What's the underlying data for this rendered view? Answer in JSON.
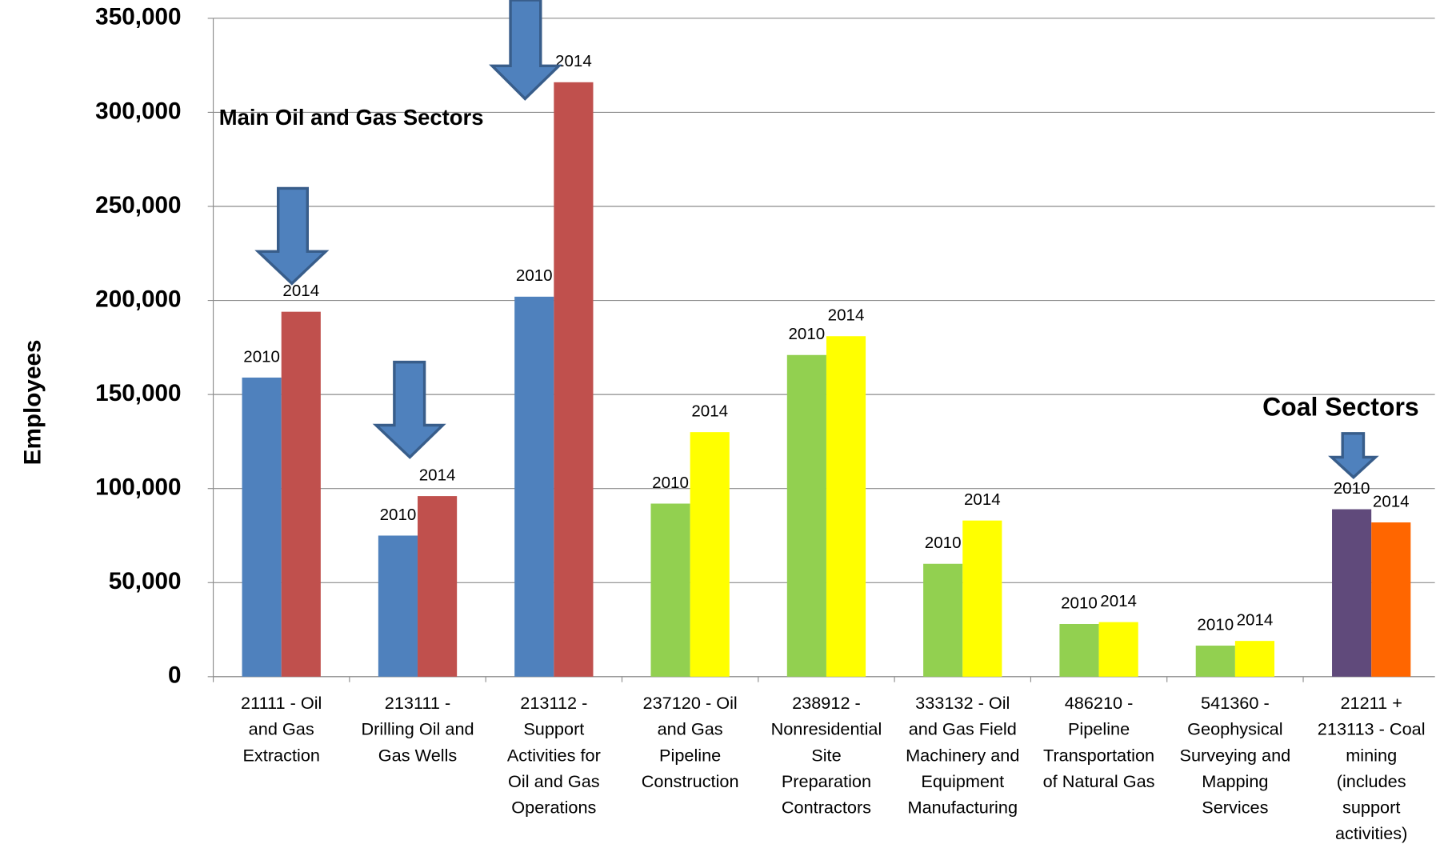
{
  "chart_data": {
    "type": "bar",
    "y_label": "Employees",
    "annotations": [
      "Main Oil and Gas Sectors",
      "Coal Sectors"
    ],
    "categories": [
      "21111  -  Oil\nand Gas\nExtraction",
      "213111 -\nDrilling Oil and\nGas Wells",
      "213112 -\nSupport\nActivities for\nOil and Gas\nOperations",
      "237120 - Oil\nand Gas\nPipeline\nConstruction",
      "238912 -\nNonresidential\nSite\nPreparation\nContractors",
      "333132 - Oil\nand Gas Field\nMachinery and\nEquipment\nManufacturing",
      "486210 -\nPipeline\nTransportation\nof Natural Gas",
      "541360 -\nGeophysical\nSurveying and\nMapping\nServices",
      "21211 +\n213113 - Coal\nmining\n(includes\nsupport\nactivities)"
    ],
    "series": [
      {
        "name": "2010",
        "colors": [
          "#4f81bd",
          "#4f81bd",
          "#4f81bd",
          "#92d050",
          "#92d050",
          "#92d050",
          "#92d050",
          "#92d050",
          "#604a7b"
        ],
        "values": [
          159000,
          75000,
          202000,
          92000,
          171000,
          60000,
          28000,
          16500,
          89000
        ]
      },
      {
        "name": "2014",
        "colors": [
          "#c0504d",
          "#c0504d",
          "#c0504d",
          "#ffff00",
          "#ffff00",
          "#ffff00",
          "#ffff00",
          "#ffff00",
          "#ff6600"
        ],
        "values": [
          194000,
          96000,
          316000,
          130000,
          181000,
          83000,
          29000,
          19000,
          82000
        ]
      }
    ],
    "ylim": [
      0,
      350000
    ],
    "yticks": [
      0,
      {
        "value": 50000,
        "label": "50,000"
      },
      {
        "value": 100000,
        "label": "100,000"
      },
      {
        "value": 150000,
        "label": "150,000"
      },
      {
        "value": 200000,
        "label": "200,000"
      },
      {
        "value": 250000,
        "label": "250,000"
      },
      {
        "value": 300000,
        "label": "300,000"
      },
      {
        "value": 350000,
        "label": "350,000"
      }
    ],
    "grid": true
  }
}
